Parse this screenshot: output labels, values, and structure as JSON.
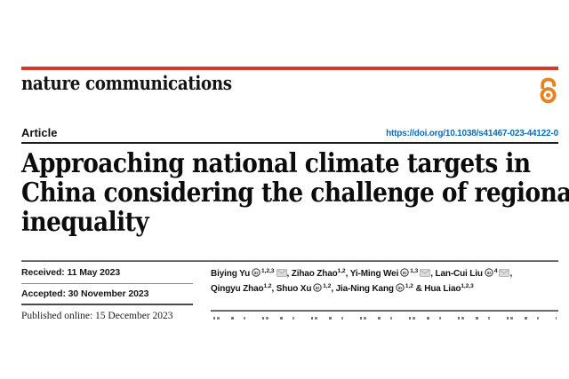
{
  "masthead": {
    "journal_name": "nature communications",
    "rule_color": "#d5392b",
    "accent_orange": "#e8821f"
  },
  "icons": {
    "open_access": "open-access-icon",
    "orcid": "orcid-icon",
    "email": "email-icon"
  },
  "article_header": {
    "kicker": "Article",
    "doi": "https://doi.org/10.1038/s41467-023-44122-0",
    "doi_color": "#0d6bb5"
  },
  "title": {
    "full": "Approaching national climate targets in China considering the challenge of regional inequality",
    "lines": [
      "Approaching national climate targets in",
      "China considering the challenge of regional",
      "inequality"
    ]
  },
  "timeline": {
    "received": "Received: 11 May 2023",
    "accepted": "Accepted: 30 November 2023",
    "published": "Published online: 15 December 2023"
  },
  "authors": {
    "list": [
      {
        "name": "Biying Yu",
        "orcid": true,
        "sup": "1,2,3",
        "email": true,
        "sep": ", "
      },
      {
        "name": "Zihao Zhao",
        "orcid": false,
        "sup": "1,2",
        "email": false,
        "sep": ", "
      },
      {
        "name": "Yi-Ming Wei",
        "orcid": true,
        "sup": "1,3",
        "email": true,
        "sep": ", "
      },
      {
        "name": "Lan-Cui Liu",
        "orcid": true,
        "sup": "4",
        "email": true,
        "sep": ",",
        "break_after": true
      },
      {
        "name": "Qingyu Zhao",
        "orcid": false,
        "sup": "1,2",
        "email": false,
        "sep": ", "
      },
      {
        "name": "Shuo Xu",
        "orcid": true,
        "sup": "1,2",
        "email": false,
        "sep": ", "
      },
      {
        "name": "Jia-Ning Kang",
        "orcid": true,
        "sup": "1,2",
        "email": false,
        "sep": " & "
      },
      {
        "name": "Hua Liao",
        "orcid": false,
        "sup": "1,2,3",
        "email": false,
        "sep": ""
      }
    ]
  }
}
